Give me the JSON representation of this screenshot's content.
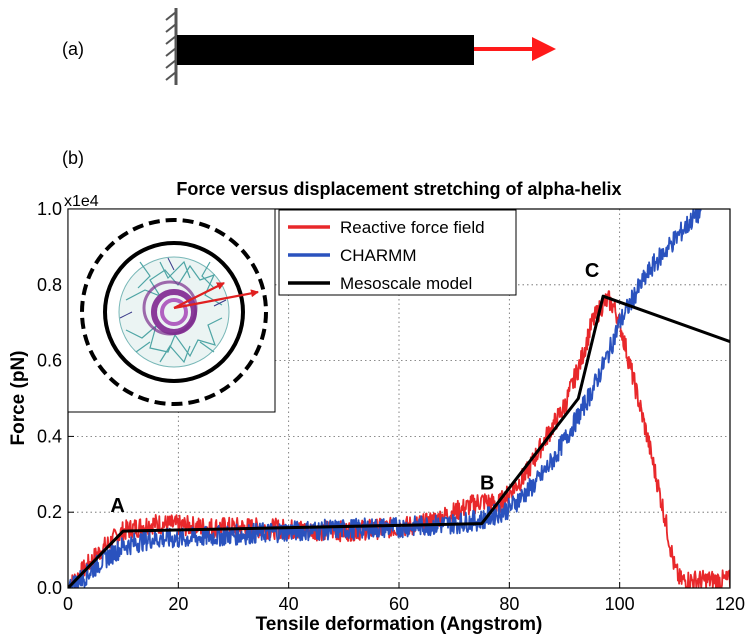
{
  "panel_a": {
    "label": "(a)",
    "beam_color": "#000000",
    "arrow_color": "#ff1a1a",
    "icons": [
      "fixed-wall-support-icon",
      "pull-force-arrow-icon"
    ]
  },
  "panel_b": {
    "label": "(b)",
    "inset_icon": "alpha-helix-cross-section-image",
    "inset_arrow_color": "#e02020"
  },
  "chart_data": {
    "type": "line",
    "title": "Force versus displacement stretching of alpha-helix",
    "xlabel": "Tensile deformation (Angstrom)",
    "ylabel": "Force (pN)",
    "y_multiplier": "x1e4",
    "xlim": [
      0,
      120
    ],
    "ylim": [
      0,
      1.0
    ],
    "xticks": [
      "0",
      "20",
      "40",
      "60",
      "80",
      "100",
      "120"
    ],
    "yticks": [
      "0.0",
      "0.2",
      "0.4",
      "0.6",
      "0.8",
      "1.0"
    ],
    "grid": true,
    "legend_position": "top-center",
    "annotations": [
      {
        "text": "A",
        "x": 9,
        "y": 0.2
      },
      {
        "text": "B",
        "x": 76,
        "y": 0.26
      },
      {
        "text": "C",
        "x": 95,
        "y": 0.82
      }
    ],
    "series": [
      {
        "name": "Reactive force field",
        "color": "#e8282b",
        "x": [
          0,
          3,
          6,
          10,
          15,
          20,
          25,
          30,
          40,
          50,
          60,
          65,
          70,
          75,
          78,
          80,
          83,
          86,
          90,
          93,
          95,
          97,
          98,
          99,
          100,
          102,
          105,
          108,
          110,
          111,
          113,
          116,
          120
        ],
        "y": [
          0.0,
          0.05,
          0.1,
          0.15,
          0.17,
          0.165,
          0.16,
          0.16,
          0.155,
          0.15,
          0.16,
          0.17,
          0.2,
          0.23,
          0.22,
          0.25,
          0.3,
          0.38,
          0.48,
          0.6,
          0.7,
          0.75,
          0.76,
          0.74,
          0.7,
          0.58,
          0.4,
          0.2,
          0.05,
          0.02,
          0.02,
          0.02,
          0.02
        ]
      },
      {
        "name": "CHARMM",
        "color": "#2a52be",
        "x": [
          0,
          3,
          6,
          10,
          15,
          20,
          30,
          40,
          50,
          60,
          70,
          75,
          80,
          85,
          88,
          92,
          95,
          98,
          100,
          103,
          106,
          110,
          113,
          115
        ],
        "y": [
          0.0,
          0.03,
          0.07,
          0.11,
          0.13,
          0.13,
          0.14,
          0.15,
          0.155,
          0.16,
          0.17,
          0.18,
          0.21,
          0.28,
          0.34,
          0.44,
          0.52,
          0.62,
          0.7,
          0.78,
          0.85,
          0.92,
          0.97,
          1.0
        ]
      },
      {
        "name": "Mesoscale model",
        "color": "#000000",
        "x": [
          0,
          10,
          75,
          92.5,
          97,
          120
        ],
        "y": [
          0.0,
          0.15,
          0.17,
          0.5,
          0.77,
          0.65
        ]
      }
    ]
  }
}
